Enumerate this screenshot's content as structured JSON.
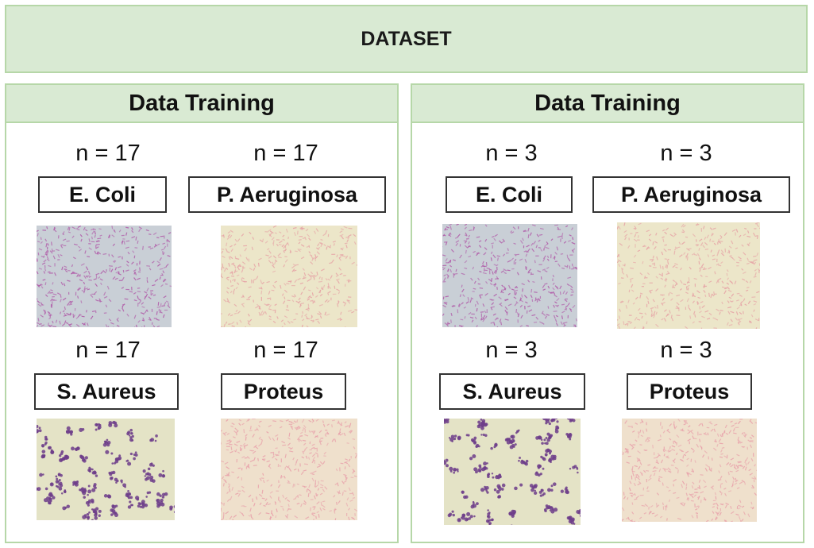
{
  "header": {
    "title": "DATASET"
  },
  "panels": [
    {
      "title": "Data Training",
      "items": [
        {
          "count": "n = 17",
          "label": "E. Coli",
          "image": "ecoli-micrograph",
          "bg": "#c9cfd6",
          "dot": "#b05aa8"
        },
        {
          "count": "n = 17",
          "label": "P. Aeruginosa",
          "image": "p-aeruginosa-micrograph",
          "bg": "#ece6c9",
          "dot": "#e6a3a6"
        },
        {
          "count": "n = 17",
          "label": "S. Aureus",
          "image": "s-aureus-micrograph",
          "bg": "#e4e3c6",
          "dot": "#6d3d8a"
        },
        {
          "count": "n = 17",
          "label": "Proteus",
          "image": "proteus-micrograph",
          "bg": "#efe0cc",
          "dot": "#e8a0aa"
        }
      ]
    },
    {
      "title": "Data Training",
      "items": [
        {
          "count": "n = 3",
          "label": "E. Coli",
          "image": "ecoli-micrograph",
          "bg": "#c9cfd6",
          "dot": "#b05aa8"
        },
        {
          "count": "n = 3",
          "label": "P. Aeruginosa",
          "image": "p-aeruginosa-micrograph",
          "bg": "#ece6c9",
          "dot": "#e6a3a6"
        },
        {
          "count": "n = 3",
          "label": "S. Aureus",
          "image": "s-aureus-micrograph",
          "bg": "#e4e3c6",
          "dot": "#6d3d8a"
        },
        {
          "count": "n = 3",
          "label": "Proteus",
          "image": "proteus-micrograph",
          "bg": "#efe0cc",
          "dot": "#e8a0aa"
        }
      ]
    }
  ]
}
